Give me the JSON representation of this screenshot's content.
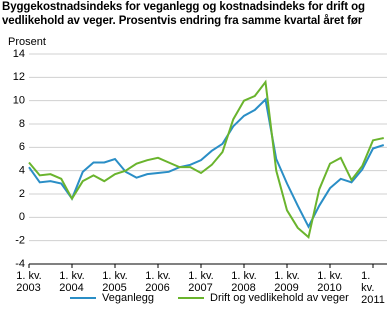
{
  "chart_data": {
    "type": "line",
    "title": "Byggekostnadsindeks for veganlegg og kostnadsindeks for drift og vedlikehold av veger. Prosentvis endring fra samme kvartal året før",
    "y_axis_label": "Prosent",
    "categories": [
      "1. kv.\n2003",
      null,
      null,
      null,
      "1. kv.\n2004",
      null,
      null,
      null,
      "1. kv.\n2005",
      null,
      null,
      null,
      "1. kv.\n2006",
      null,
      null,
      null,
      "1. kv.\n2007",
      null,
      null,
      null,
      "1. kv.\n2008",
      null,
      null,
      null,
      "1. kv.\n2009",
      null,
      null,
      null,
      "1. kv.\n2010",
      null,
      null,
      null,
      "1. kv.\n2011",
      null
    ],
    "series": [
      {
        "name": "Veganlegg",
        "color": "#2a8ec6",
        "values": [
          4.3,
          3.0,
          3.1,
          2.9,
          1.6,
          3.9,
          4.7,
          4.7,
          5.0,
          3.9,
          3.4,
          3.7,
          3.8,
          3.9,
          4.3,
          4.5,
          4.9,
          5.7,
          6.3,
          7.8,
          8.7,
          9.2,
          10.1,
          5.0,
          2.9,
          1.0,
          -0.8,
          1.0,
          2.5,
          3.3,
          3.0,
          4.1,
          5.9,
          6.2
        ]
      },
      {
        "name": "Drift og vedlikehold av veger",
        "color": "#6ab42d",
        "values": [
          4.7,
          3.6,
          3.7,
          3.3,
          1.6,
          3.1,
          3.6,
          3.1,
          3.7,
          4.0,
          4.6,
          4.9,
          5.1,
          4.7,
          4.3,
          4.3,
          3.8,
          4.5,
          5.6,
          8.4,
          10.0,
          10.4,
          11.6,
          4.0,
          0.6,
          -0.9,
          -1.7,
          2.4,
          4.6,
          5.1,
          3.2,
          4.4,
          6.6,
          6.8
        ]
      }
    ],
    "ylim": [
      -4,
      14
    ],
    "yticks": [
      -4,
      -2,
      0,
      2,
      4,
      6,
      8,
      10,
      12,
      14
    ],
    "grid": true
  }
}
